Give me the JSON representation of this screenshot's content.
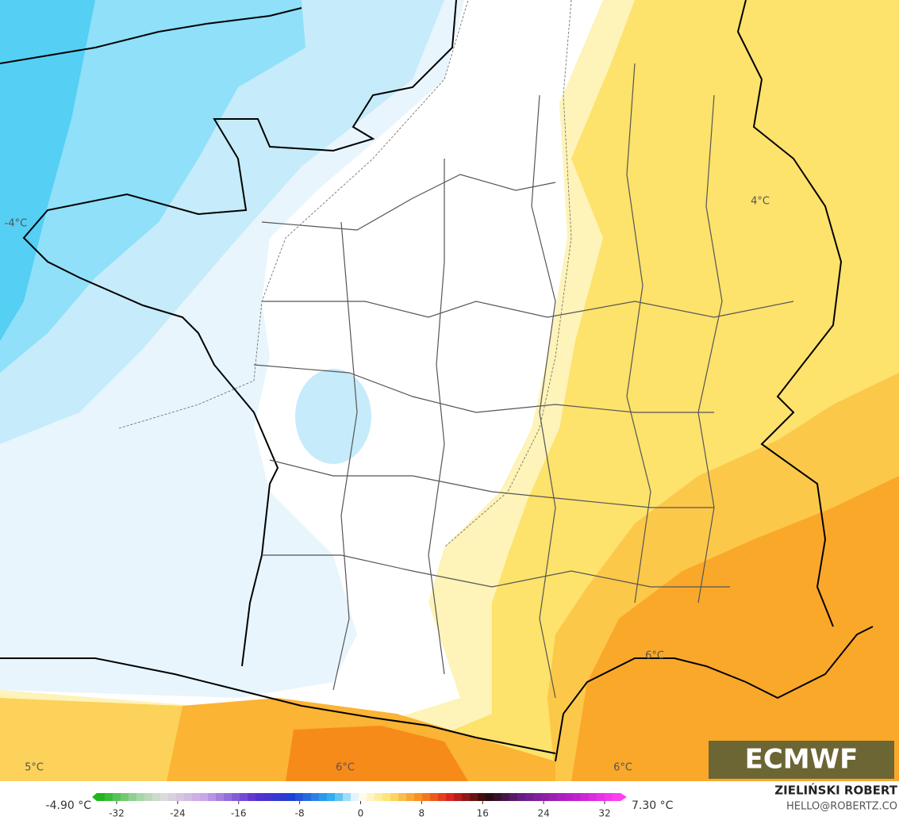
{
  "map": {
    "contour_labels": [
      "-4°C",
      "4°C",
      "6°C",
      "5°C",
      "6°C",
      "6°C"
    ],
    "logo": "ECMWF",
    "author": "ZIELIŃSKI ROBERT",
    "contact": "HELLO@ROBERTZ.CO",
    "colorbar": {
      "min_label": "-4.90 °C",
      "max_label": "7.30 °C",
      "ticks": [
        -32,
        -24,
        -16,
        -8,
        0,
        8,
        16,
        24,
        32
      ]
    }
  }
}
